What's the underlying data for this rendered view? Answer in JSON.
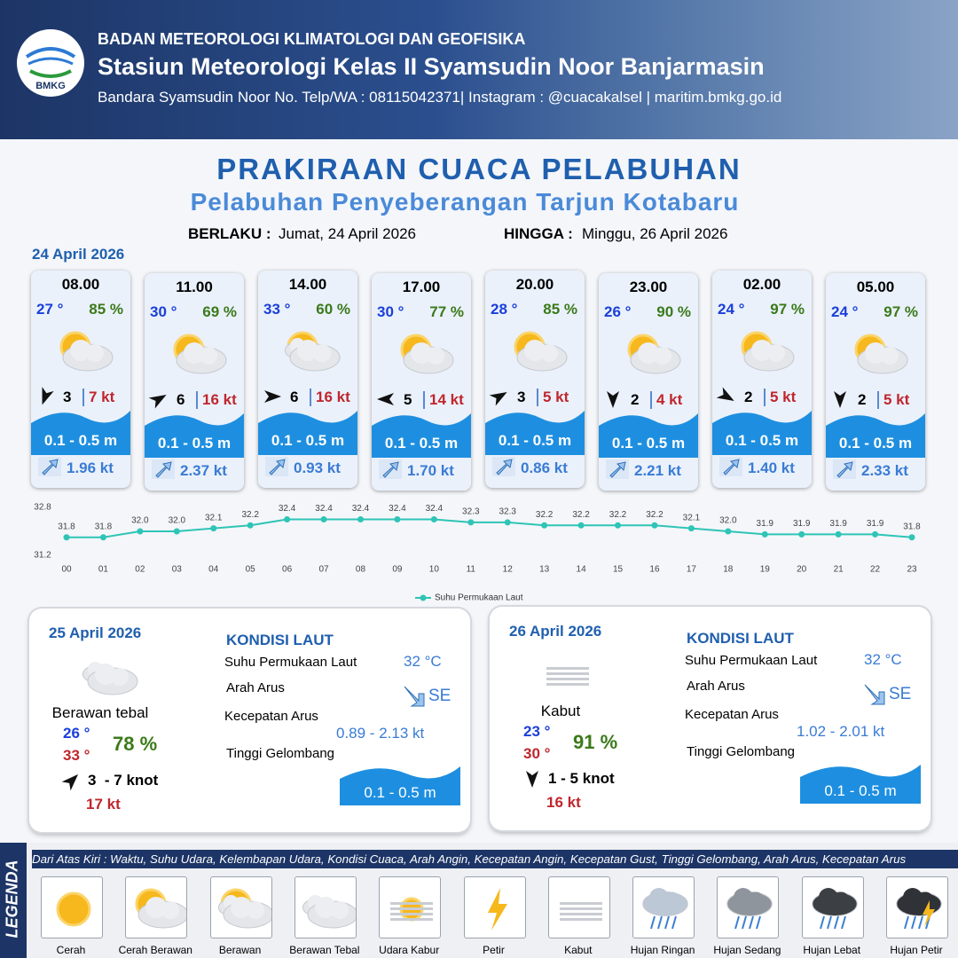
{
  "header": {
    "logo": "BMKG",
    "org": "BADAN METEOROLOGI KLIMATOLOGI DAN GEOFISIKA",
    "station": "Stasiun Meteorologi Kelas II Syamsudin Noor Banjarmasin",
    "contact": "Bandara Syamsudin Noor No. Telp/WA : 08115042371| Instagram : @cuacakalsel | maritim.bmkg.go.id"
  },
  "title": "PRAKIRAAN CUACA PELABUHAN",
  "subtitle": "Pelabuhan Penyeberangan Tarjun Kotabaru",
  "validity": {
    "from_label": "BERLAKU :",
    "from": "Jumat, 24 April 2026",
    "to_label": "HINGGA :",
    "to": "Minggu, 26 April 2026"
  },
  "day1": {
    "date": "24 April 2026",
    "cards": [
      {
        "time": "08.00",
        "temp": "27 °",
        "humidity": "85 %",
        "wind": 3,
        "gust": "7 kt",
        "wave": "0.1 - 0.5 m",
        "current": "1.96 kt"
      },
      {
        "time": "11.00",
        "temp": "30 °",
        "humidity": "69 %",
        "wind": 6,
        "gust": "16 kt",
        "wave": "0.1 - 0.5 m",
        "current": "2.37 kt"
      },
      {
        "time": "14.00",
        "temp": "33 °",
        "humidity": "60 %",
        "wind": 6,
        "gust": "16 kt",
        "wave": "0.1 - 0.5 m",
        "current": "0.93 kt"
      },
      {
        "time": "17.00",
        "temp": "30 °",
        "humidity": "77 %",
        "wind": 5,
        "gust": "14 kt",
        "wave": "0.1 - 0.5 m",
        "current": "1.70 kt"
      },
      {
        "time": "20.00",
        "temp": "28 °",
        "humidity": "85 %",
        "wind": 3,
        "gust": "5 kt",
        "wave": "0.1 - 0.5 m",
        "current": "0.86 kt"
      },
      {
        "time": "23.00",
        "temp": "26 °",
        "humidity": "90 %",
        "wind": 2,
        "gust": "4 kt",
        "wave": "0.1 - 0.5 m",
        "current": "2.21 kt"
      },
      {
        "time": "02.00",
        "temp": "24 °",
        "humidity": "97 %",
        "wind": 2,
        "gust": "5 kt",
        "wave": "0.1 - 0.5 m",
        "current": "1.40 kt"
      },
      {
        "time": "05.00",
        "temp": "24 °",
        "humidity": "97 %",
        "wind": 2,
        "gust": "5 kt",
        "wave": "0.1 - 0.5 m",
        "current": "2.33 kt"
      }
    ]
  },
  "chart_data": {
    "type": "line",
    "categories": [
      "00",
      "01",
      "02",
      "03",
      "04",
      "05",
      "06",
      "07",
      "08",
      "09",
      "10",
      "11",
      "12",
      "13",
      "14",
      "15",
      "16",
      "17",
      "18",
      "19",
      "20",
      "21",
      "22",
      "23"
    ],
    "series": [
      {
        "name": "Suhu Permukaan Laut",
        "color": "#2ec4b6",
        "values": [
          31.8,
          31.8,
          32.0,
          32.0,
          32.1,
          32.2,
          32.4,
          32.4,
          32.4,
          32.4,
          32.4,
          32.3,
          32.3,
          32.2,
          32.2,
          32.2,
          32.2,
          32.1,
          32.0,
          31.9,
          31.9,
          31.9,
          31.9,
          31.8
        ],
        "value_labels": [
          "31.8",
          "31.8",
          "32.0",
          "32.0",
          "32.1",
          "32.2",
          "32.4",
          "32.4",
          "32.4",
          "32.4",
          "32.4",
          "32.3",
          "32.3",
          "32.2",
          "32.2",
          "32.2",
          "32.2",
          "32.1",
          "32.0",
          "31.9",
          "31.9",
          "31.9",
          "31.9",
          "31.8"
        ]
      }
    ],
    "ylim": [
      31.2,
      32.8
    ],
    "yticks": [
      31.2,
      32.8
    ],
    "grid": false,
    "legend": "bottom"
  },
  "days": [
    {
      "date": "25 April 2026",
      "condition": "Berawan tebal",
      "temp_min": "26 °",
      "temp_max": "33 °",
      "humidity": "78 %",
      "wind": "3  - 7 knot",
      "gust": "17 kt",
      "sea_title": "KONDISI LAUT",
      "sst_label": "Suhu Permukaan Laut",
      "sst": "32 °C",
      "dir_label": "Arah Arus",
      "dir": "SE",
      "speed_label": "Kecepatan Arus",
      "speed": "0.89 - 2.13 kt",
      "wave_label": "Tinggi Gelombang",
      "wave": "0.1 - 0.5 m"
    },
    {
      "date": "26 April 2026",
      "condition": "Kabut",
      "temp_min": "23 °",
      "temp_max": "30 °",
      "humidity": "91 %",
      "wind": "1 - 5 knot",
      "gust": "16 kt",
      "sea_title": "KONDISI LAUT",
      "sst_label": "Suhu Permukaan Laut",
      "sst": "32 °C",
      "dir_label": "Arah Arus",
      "dir": "SE",
      "speed_label": "Kecepatan Arus",
      "speed": "1.02 - 2.01 kt",
      "wave_label": "Tinggi Gelombang",
      "wave": "0.1 - 0.5 m"
    }
  ],
  "legend": {
    "title": "LEGENDA",
    "description": "Dari Atas Kiri : Waktu, Suhu Udara, Kelembapan Udara, Kondisi Cuaca, Arah Angin, Kecepatan Angin, Kecepatan Gust, Tinggi Gelombang, Arah Arus, Kecepatan Arus",
    "items": [
      "Cerah",
      "Cerah Berawan",
      "Berawan",
      "Berawan Tebal",
      "Udara Kabur",
      "Petir",
      "Kabut",
      "Hujan Ringan",
      "Hujan Sedang",
      "Hujan Lebat",
      "Hujan Petir"
    ]
  }
}
